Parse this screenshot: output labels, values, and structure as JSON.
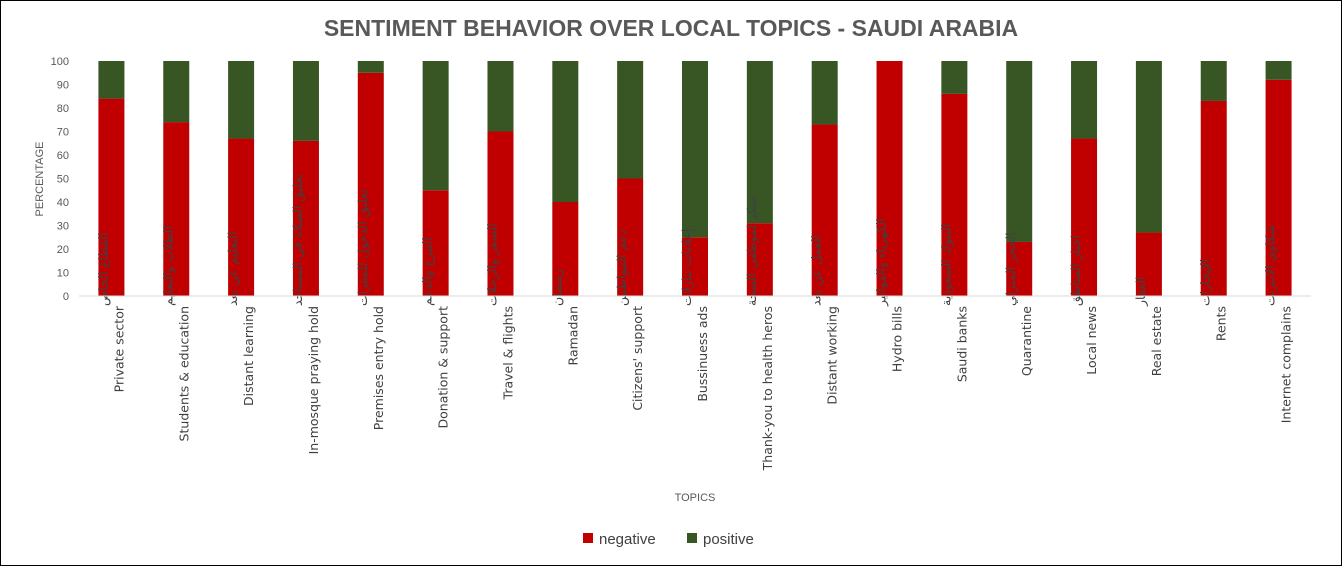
{
  "chart_data": {
    "type": "bar",
    "stacked": true,
    "title": "SENTIMENT BEHAVIOR OVER LOCAL TOPICS - SAUDI ARABIA",
    "xlabel": "TOPICS",
    "ylabel": "PERCENTAGE",
    "ylim": [
      0,
      100
    ],
    "yticks": [
      0,
      10,
      20,
      30,
      40,
      50,
      60,
      70,
      80,
      90,
      100
    ],
    "grid": false,
    "legend_position": "bottom",
    "categories": [
      {
        "ar": "القطاع الخاص",
        "en": "Private sector"
      },
      {
        "ar": "الطلاب والتعليم",
        "en": "Students & education"
      },
      {
        "ar": "التعليم عن بعد",
        "en": "Distant learning"
      },
      {
        "ar": "تعليق الصلاة في المساجد",
        "en": "In-mosque praying hold"
      },
      {
        "ar": "تعليق الدخول للمقرات",
        "en": "Premises entry hold"
      },
      {
        "ar": "التبرع والدعم",
        "en": "Donation & support"
      },
      {
        "ar": "السفر والرحلات",
        "en": "Travel & flights"
      },
      {
        "ar": "رمضان",
        "en": "Ramadan"
      },
      {
        "ar": "دعم المواطنين",
        "en": "Citizens' support"
      },
      {
        "ar": "إعلانات تنازلات",
        "en": "Bussinuess ads"
      },
      {
        "ar": "شكر لموظفي الصحة",
        "en": "Thank-you to health heros"
      },
      {
        "ar": "العمل عن بعد",
        "en": "Distant working"
      },
      {
        "ar": "الكهرباء والفواتير",
        "en": "Hydro bills"
      },
      {
        "ar": "البنوك السعودية",
        "en": "Saudi banks"
      },
      {
        "ar": "الحجر المنزلي",
        "en": "Quarantine"
      },
      {
        "ar": "اخبار المناطق",
        "en": "Local news"
      },
      {
        "ar": "العقار",
        "en": "Real estate"
      },
      {
        "ar": "الإيجارات",
        "en": "Rents"
      },
      {
        "ar": "شكاوي الانترنت",
        "en": "Internet complains"
      }
    ],
    "series": [
      {
        "name": "negative",
        "color": "#C00000",
        "values": [
          84,
          74,
          67,
          66,
          95,
          45,
          70,
          40,
          50,
          25,
          31,
          73,
          100,
          86,
          23,
          67,
          27,
          83,
          92
        ]
      },
      {
        "name": "positive",
        "color": "#375623",
        "values": [
          16,
          26,
          33,
          34,
          5,
          55,
          30,
          60,
          50,
          75,
          69,
          27,
          0,
          14,
          77,
          33,
          73,
          17,
          8
        ]
      }
    ]
  }
}
